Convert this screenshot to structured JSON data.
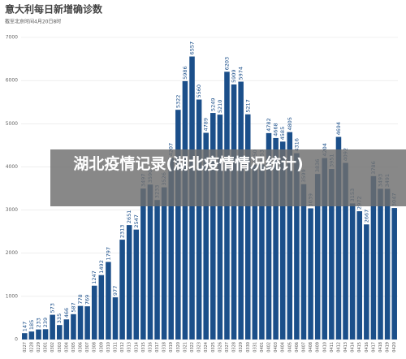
{
  "chart_data": {
    "type": "bar",
    "title": "意大利每日新增确诊数",
    "subtitle": "截至北京时间4月20日8时",
    "categories": [
      "0227",
      "0228",
      "0229",
      "0301",
      "0302",
      "0303",
      "0304",
      "0305",
      "0306",
      "0307",
      "0308",
      "0309",
      "0310",
      "0311",
      "0312",
      "0313",
      "0314",
      "0315",
      "0316",
      "0317",
      "0318",
      "0319",
      "0320",
      "0321",
      "0322",
      "0323",
      "0324",
      "0325",
      "0326",
      "0327",
      "0328",
      "0329",
      "0330",
      "0331",
      "0401",
      "0402",
      "0403",
      "0404",
      "0405",
      "0406",
      "0407",
      "0408",
      "0409",
      "0410",
      "0411",
      "0412",
      "0413",
      "0414",
      "0415",
      "0416",
      "0417",
      "0418",
      "0419",
      "0420"
    ],
    "values": [
      147,
      185,
      233,
      239,
      573,
      335,
      466,
      587,
      778,
      769,
      1247,
      1492,
      1797,
      977,
      2313,
      2651,
      2547,
      3497,
      3590,
      3233,
      3526,
      4207,
      5322,
      5986,
      6557,
      5560,
      4789,
      5249,
      5210,
      6203,
      5909,
      5974,
      5217,
      4050,
      4053,
      4782,
      4668,
      4585,
      4805,
      4316,
      3599,
      3039,
      3836,
      4204,
      3951,
      4694,
      4092,
      3153,
      2972,
      2667,
      3786,
      3493,
      3491,
      3047
    ],
    "color": "#1b4f8a",
    "ylim": [
      0,
      7000
    ],
    "yticks": [
      0,
      1000,
      2000,
      3000,
      4000,
      5000,
      6000,
      7000
    ],
    "grid": true
  },
  "overlay": {
    "text": "湖北疫情记录(湖北疫情情况统计)"
  }
}
